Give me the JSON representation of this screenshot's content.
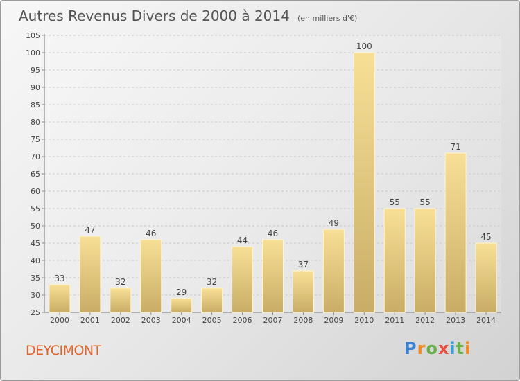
{
  "chart_data": {
    "type": "bar",
    "title": "Autres Revenus Divers de 2000 à 2014",
    "unit_label": "(en milliers d'€)",
    "categories": [
      "2000",
      "2001",
      "2002",
      "2003",
      "2004",
      "2005",
      "2006",
      "2007",
      "2008",
      "2009",
      "2010",
      "2011",
      "2012",
      "2013",
      "2014"
    ],
    "values": [
      33,
      47,
      32,
      46,
      29,
      32,
      44,
      46,
      37,
      49,
      100,
      55,
      55,
      71,
      45
    ],
    "ylim": [
      25,
      105
    ],
    "yticks": [
      25,
      30,
      35,
      40,
      45,
      50,
      55,
      60,
      65,
      70,
      75,
      80,
      85,
      90,
      95,
      100,
      105
    ],
    "grid": true,
    "bar_color_top": "#f8df96",
    "bar_color_bottom": "#c9ad66"
  },
  "place_name": "DEYCIMONT",
  "logo": {
    "text": "Proxiti",
    "colors": [
      "#3a7fd0",
      "#f08a24",
      "#6ab04c",
      "#e84c3d",
      "#3a9fd0"
    ]
  }
}
